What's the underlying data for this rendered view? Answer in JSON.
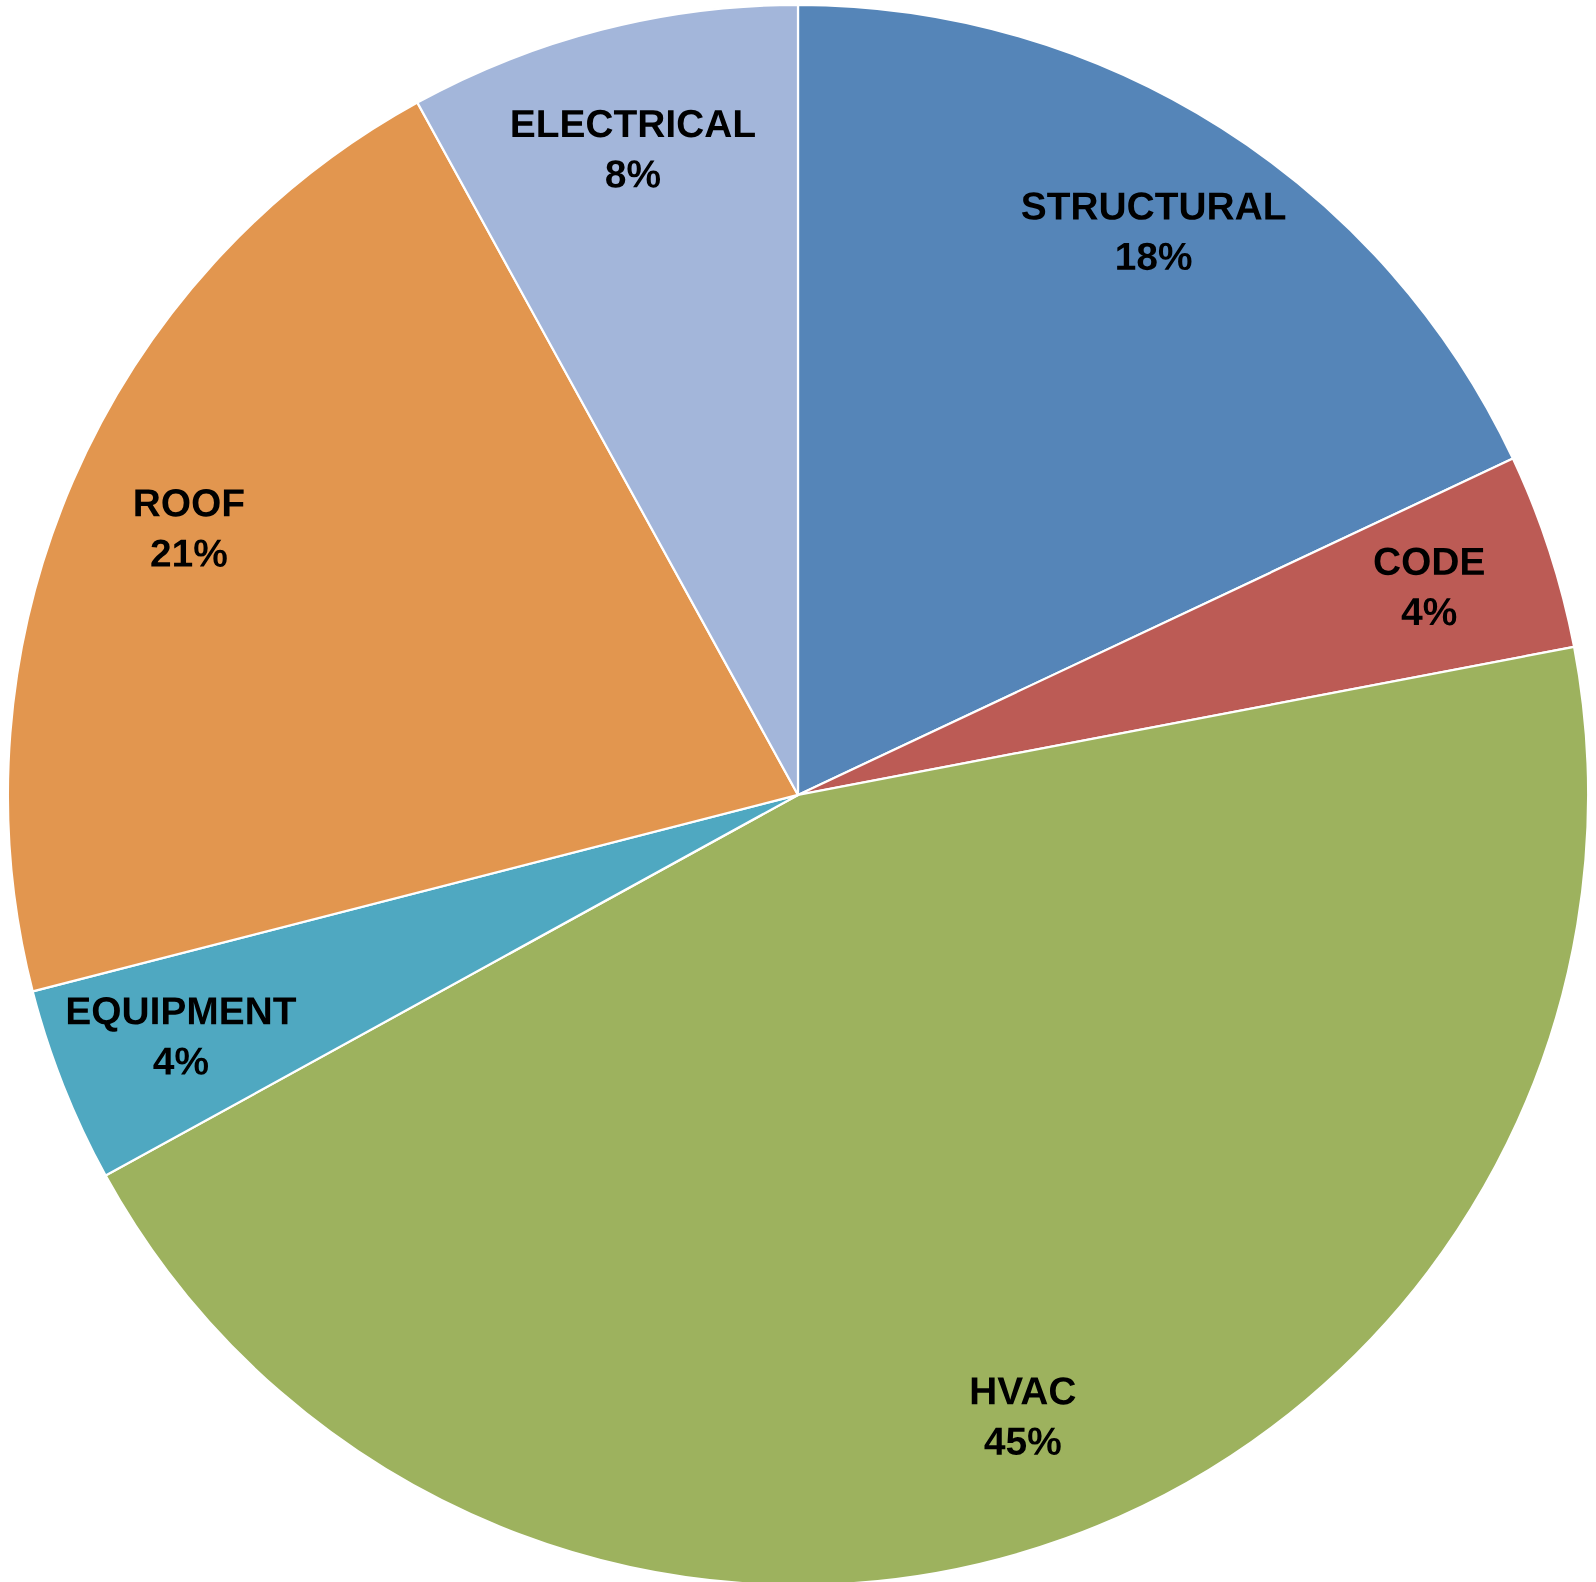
{
  "chart_data": {
    "type": "pie",
    "categories": [
      "STRUCTURAL",
      "CODE",
      "HVAC",
      "EQUIPMENT",
      "ROOF",
      "ELECTRICAL"
    ],
    "values": [
      18,
      4,
      45,
      4,
      21,
      8
    ],
    "value_labels": [
      "18%",
      "4%",
      "45%",
      "4%",
      "21%",
      "8%"
    ],
    "colors": [
      "#5585b8",
      "#bc5b55",
      "#9db25e",
      "#4fa8c1",
      "#e2964f",
      "#a3b6da"
    ]
  }
}
